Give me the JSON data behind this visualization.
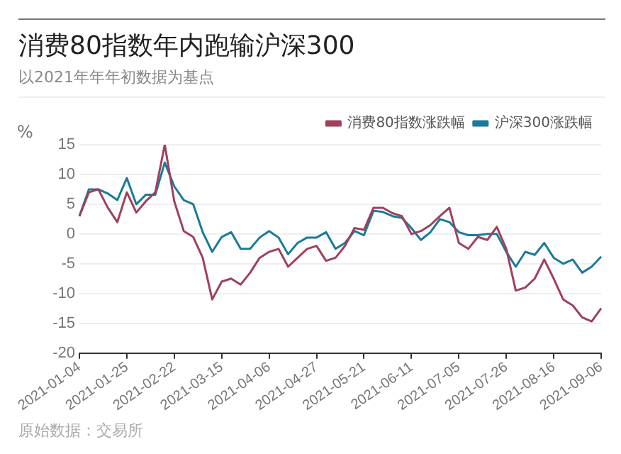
{
  "chart_data": {
    "type": "line",
    "title": "消费80指数年内跑输沪深300",
    "subtitle": "以2021年年年初数据为基点",
    "ylabel": "%",
    "categories": [
      "2021-01-04",
      null,
      null,
      null,
      null,
      "2021-01-25",
      null,
      null,
      null,
      null,
      "2021-02-22",
      null,
      null,
      null,
      null,
      "2021-03-15",
      null,
      null,
      null,
      null,
      "2021-04-06",
      null,
      null,
      null,
      null,
      "2021-04-27",
      null,
      null,
      null,
      null,
      "2021-05-21",
      null,
      null,
      null,
      null,
      "2021-06-11",
      null,
      null,
      null,
      null,
      "2021-07-05",
      null,
      null,
      null,
      null,
      "2021-07-26",
      null,
      null,
      null,
      null,
      "2021-08-16",
      null,
      null,
      null,
      null,
      "2021-09-06"
    ],
    "series": [
      {
        "name": "消费80指数涨跌幅",
        "color": "#a0405a",
        "values": [
          3,
          7,
          7.5,
          4.4,
          2,
          7,
          3.6,
          5.5,
          7,
          15,
          5.5,
          0.5,
          -0.5,
          -4,
          -11,
          -8,
          -7.5,
          -8.5,
          -6.5,
          -4,
          -3,
          -2.5,
          -5.5,
          -4,
          -2.5,
          -2,
          -4.5,
          -4,
          -2,
          1,
          0.7,
          4.4,
          4.4,
          3.5,
          3,
          0,
          0.5,
          1.5,
          3,
          4.4,
          -1.5,
          -2.5,
          -0.5,
          -1,
          1.2,
          -2.5,
          -9.5,
          -9,
          -7.5,
          -4.3,
          -7.5,
          -11,
          -12,
          -14,
          -14.7,
          -12.5
        ]
      },
      {
        "name": "沪深300涨跌幅",
        "color": "#1a7a9a",
        "values": [
          3,
          7.5,
          7.5,
          6.8,
          5.7,
          9.4,
          5,
          6.6,
          6.6,
          12,
          8,
          5.7,
          5,
          0.3,
          -3,
          -0.5,
          0.3,
          -2.5,
          -2.5,
          -0.6,
          0.5,
          -0.6,
          -3.4,
          -1.5,
          -0.6,
          -0.6,
          0.3,
          -2.5,
          -1.5,
          0.5,
          -0.2,
          3.9,
          3.7,
          3,
          2.7,
          1,
          -1,
          0.3,
          2.5,
          2,
          0.3,
          -0.2,
          -0.2,
          0,
          0,
          -3,
          -5.5,
          -3,
          -3.5,
          -1.5,
          -4,
          -5,
          -4.3,
          -6.5,
          -5.5,
          -3.8
        ]
      }
    ],
    "ylim": [
      -20,
      15
    ],
    "yticks": [
      -20,
      -15,
      -10,
      -5,
      0,
      5,
      10,
      15
    ],
    "grid": "y",
    "legend": "top right",
    "marker": "none",
    "line_style": "solid",
    "annotations": [
      "原始数据：交易所"
    ]
  }
}
